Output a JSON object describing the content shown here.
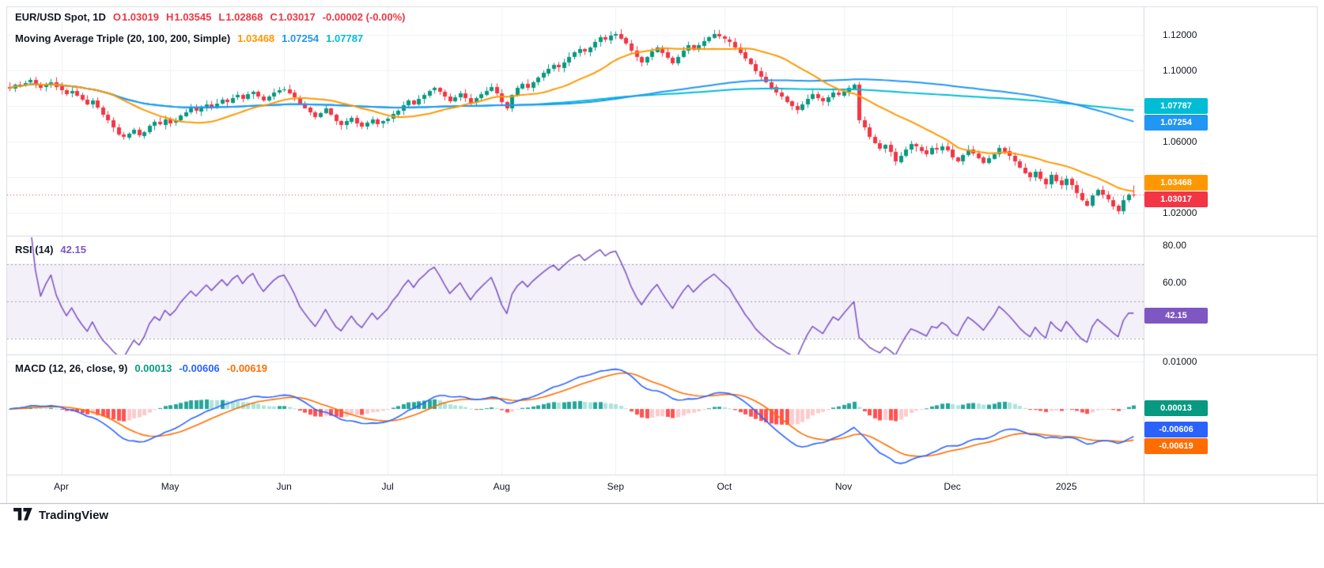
{
  "colors": {
    "up": "#089981",
    "down": "#F23645",
    "ma20": "#FF9800",
    "ma100": "#2196F3",
    "ma200": "#00BCD4",
    "rsi": "#7E57C2",
    "rsi_band": "rgba(126,87,194,0.09)",
    "rsi_dash": "#9B9EA8",
    "macd_line": "#2962FF",
    "macd_signal": "#FF6D00",
    "hist_pos": "#26A69A",
    "hist_pos_light": "#ACE5DC",
    "hist_neg": "#FF5252",
    "hist_neg_light": "#FCCBCD",
    "hist_tag": "#089981",
    "grid": "#EEF0F4",
    "divider": "#D7DAE0",
    "border": "#D9DCE3",
    "bottom_border": "#B4B7BE",
    "text": "#131722",
    "muted": "#787B86",
    "tag_text": "#FFFFFF"
  },
  "legend": {
    "symbol": "EUR/USD Spot, 1D",
    "o_label": "O",
    "o": "1.03019",
    "h_label": "H",
    "h": "1.03545",
    "l_label": "L",
    "l": "1.02868",
    "c_label": "C",
    "c": "1.03017",
    "change": "-0.00002 (-0.00%)"
  },
  "ma_legend": {
    "title": "Moving Average Triple (20, 100, 200, Simple)",
    "ma20": "1.03468",
    "ma100": "1.07254",
    "ma200": "1.07787"
  },
  "rsi_legend": {
    "title": "RSI (14)",
    "value": "42.15"
  },
  "macd_legend": {
    "title": "MACD (12, 26, close, 9)",
    "hist": "0.00013",
    "macd": "-0.00606",
    "signal": "-0.00619"
  },
  "footer": {
    "brand": "TradingView"
  },
  "price_axis": {
    "labels": [
      {
        "text": "1.12000",
        "value": 1.12
      },
      {
        "text": "1.10000",
        "value": 1.1
      },
      {
        "text": "1.06000",
        "value": 1.06
      },
      {
        "text": "1.02000",
        "value": 1.02
      }
    ]
  },
  "rsi_axis": {
    "labels": [
      {
        "text": "80.00",
        "value": 80
      },
      {
        "text": "60.00",
        "value": 60
      }
    ]
  },
  "macd_axis": {
    "labels": [
      {
        "text": "0.01000",
        "value": 0.01
      }
    ]
  },
  "time_axis": {
    "labels": [
      {
        "label": "Apr",
        "index": 10
      },
      {
        "label": "May",
        "index": 31
      },
      {
        "label": "Jun",
        "index": 53
      },
      {
        "label": "Jul",
        "index": 73
      },
      {
        "label": "Aug",
        "index": 95
      },
      {
        "label": "Sep",
        "index": 117
      },
      {
        "label": "Oct",
        "index": 138
      },
      {
        "label": "Nov",
        "index": 161
      },
      {
        "label": "Dec",
        "index": 182
      },
      {
        "label": "2025",
        "index": 204
      }
    ]
  },
  "tags": [
    {
      "name": "ma-200-price-tag",
      "text": "1.07787",
      "color_key": "ma200",
      "panel": "main",
      "value": 1.07787
    },
    {
      "name": "ma-100-price-tag",
      "text": "1.07254",
      "color_key": "ma100",
      "panel": "main",
      "value": 1.07254
    },
    {
      "name": "ma-20-price-tag",
      "text": "1.03468",
      "color_key": "ma20",
      "panel": "main",
      "value": 1.03468
    },
    {
      "name": "last-price-tag",
      "text": "1.03017",
      "color_key": "down",
      "panel": "main",
      "value": 1.03017
    },
    {
      "name": "rsi-value-tag",
      "text": "42.15",
      "color_key": "rsi",
      "panel": "rsi",
      "value": 42.15
    },
    {
      "name": "macd-hist-tag",
      "text": "0.00013",
      "color_key": "hist_tag",
      "panel": "macd",
      "value": 0.00013
    },
    {
      "name": "macd-line-tag",
      "text": "-0.00606",
      "color_key": "macd_line",
      "panel": "macd",
      "value": -0.00606
    },
    {
      "name": "macd-signal-tag",
      "text": "-0.00619",
      "color_key": "macd_signal",
      "panel": "macd",
      "value": -0.00619
    }
  ],
  "chart_data": {
    "type": "candlestick",
    "symbol": "EUR/USD Spot",
    "interval": "1D",
    "title": "EUR/USD Spot, 1D with Moving Average Triple (20,100,200 Simple), RSI(14), MACD(12,26,close,9)",
    "y_axis_range": {
      "min": 1.008,
      "max": 1.136
    },
    "grid_levels": {
      "price": [
        1.02,
        1.04,
        1.06,
        1.08,
        1.1,
        1.12
      ],
      "macd": [
        0.01
      ]
    },
    "last_candle": {
      "o": 1.03019,
      "h": 1.03545,
      "l": 1.02868,
      "c": 1.03017
    },
    "indicators": {
      "moving_average_triple": {
        "type": "Simple",
        "periods": [
          20,
          100,
          200
        ],
        "values": [
          1.03468,
          1.07254,
          1.07787
        ]
      },
      "rsi": {
        "period": 14,
        "value": 42.15,
        "bands": [
          70,
          50,
          30
        ],
        "axis_range": [
          20,
          85
        ]
      },
      "macd": {
        "fast": 12,
        "slow": 26,
        "source": "close",
        "signal_period": 9,
        "histogram": 0.00013,
        "macd": -0.00606,
        "signal": -0.00619
      }
    },
    "closes": [
      1.09,
      1.092,
      1.0915,
      1.093,
      1.0945,
      1.0925,
      1.0905,
      1.092,
      1.0935,
      1.091,
      1.089,
      1.087,
      1.0885,
      1.086,
      1.0835,
      1.081,
      1.083,
      1.079,
      1.075,
      1.072,
      1.068,
      1.064,
      1.0625,
      1.0645,
      1.0665,
      1.0635,
      1.0655,
      1.069,
      1.071,
      1.0695,
      1.0725,
      1.0705,
      1.072,
      1.0745,
      1.0765,
      1.0785,
      1.077,
      1.079,
      1.081,
      1.0795,
      1.0815,
      1.0835,
      1.082,
      1.0845,
      1.086,
      1.084,
      1.0865,
      1.088,
      1.0855,
      1.0835,
      1.0855,
      1.0875,
      1.089,
      1.0895,
      1.0875,
      1.085,
      1.0815,
      1.079,
      1.0765,
      1.074,
      1.076,
      1.0785,
      1.075,
      1.0715,
      1.0695,
      1.0715,
      1.0735,
      1.0705,
      1.0685,
      1.0705,
      1.0725,
      1.07,
      1.0715,
      1.073,
      1.0755,
      1.0775,
      1.0805,
      1.083,
      1.081,
      1.084,
      1.086,
      1.0885,
      1.09,
      1.088,
      1.0855,
      1.083,
      1.085,
      1.087,
      1.0845,
      1.082,
      1.0845,
      1.0865,
      1.0885,
      1.0905,
      1.087,
      1.082,
      1.0785,
      1.086,
      1.09,
      1.0925,
      1.0905,
      1.0935,
      1.096,
      1.0985,
      1.101,
      1.103,
      1.1015,
      1.1045,
      1.1075,
      1.11,
      1.112,
      1.1105,
      1.113,
      1.116,
      1.1185,
      1.117,
      1.1195,
      1.1205,
      1.118,
      1.115,
      1.111,
      1.1075,
      1.1045,
      1.1075,
      1.1105,
      1.113,
      1.11,
      1.107,
      1.104,
      1.1075,
      1.111,
      1.114,
      1.1115,
      1.114,
      1.1165,
      1.1185,
      1.1205,
      1.119,
      1.1175,
      1.116,
      1.113,
      1.11,
      1.1065,
      1.1035,
      1.0995,
      1.0965,
      1.0935,
      1.0905,
      1.0875,
      1.0855,
      1.0825,
      1.08,
      1.078,
      1.081,
      1.084,
      1.0865,
      1.0845,
      1.0825,
      1.085,
      1.0875,
      1.086,
      1.088,
      1.09,
      1.092,
      1.072,
      1.068,
      1.0625,
      1.059,
      1.056,
      1.058,
      1.054,
      1.0485,
      1.052,
      1.0555,
      1.0585,
      1.057,
      1.055,
      1.053,
      1.0565,
      1.0555,
      1.0575,
      1.0555,
      1.051,
      1.049,
      1.0525,
      1.0555,
      1.0535,
      1.051,
      1.048,
      1.0505,
      1.053,
      1.0565,
      1.0545,
      1.052,
      1.049,
      1.0455,
      1.0425,
      1.04,
      1.043,
      1.039,
      1.036,
      1.0415,
      1.038,
      1.0355,
      1.039,
      1.0355,
      1.031,
      1.0268,
      1.0242,
      1.0298,
      1.0328,
      1.03,
      1.0272,
      1.0238,
      1.0208,
      1.027,
      1.03019,
      1.03017
    ]
  }
}
